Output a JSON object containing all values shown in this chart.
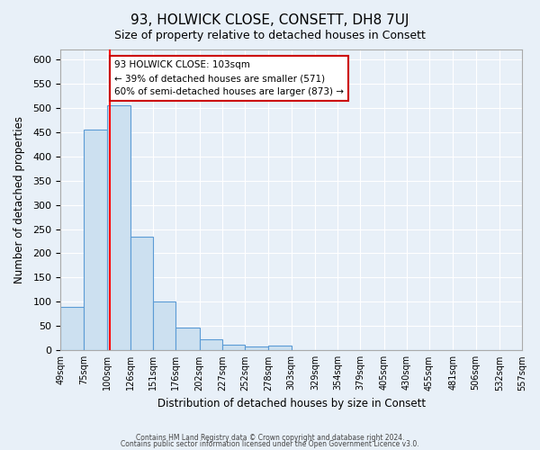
{
  "title": "93, HOLWICK CLOSE, CONSETT, DH8 7UJ",
  "subtitle": "Size of property relative to detached houses in Consett",
  "xlabel": "Distribution of detached houses by size in Consett",
  "ylabel": "Number of detached properties",
  "footer_lines": [
    "Contains HM Land Registry data © Crown copyright and database right 2024.",
    "Contains public sector information licensed under the Open Government Licence v3.0."
  ],
  "bin_edges": [
    49,
    75,
    100,
    126,
    151,
    176,
    202,
    227,
    252,
    278,
    303,
    329,
    354,
    379,
    405,
    430,
    455,
    481,
    506,
    532,
    557
  ],
  "bin_labels": [
    "49sqm",
    "75sqm",
    "100sqm",
    "126sqm",
    "151sqm",
    "176sqm",
    "202sqm",
    "227sqm",
    "252sqm",
    "278sqm",
    "303sqm",
    "329sqm",
    "354sqm",
    "379sqm",
    "405sqm",
    "430sqm",
    "455sqm",
    "481sqm",
    "506sqm",
    "532sqm",
    "557sqm"
  ],
  "bar_heights": [
    90,
    455,
    505,
    235,
    100,
    47,
    22,
    12,
    8,
    10,
    0,
    0,
    1,
    0,
    1,
    0,
    0,
    0,
    1,
    1
  ],
  "bar_color": "#cce0f0",
  "bar_edge_color": "#5b9bd5",
  "red_line_x": 103,
  "ylim": [
    0,
    620
  ],
  "yticks": [
    0,
    50,
    100,
    150,
    200,
    250,
    300,
    350,
    400,
    450,
    500,
    550,
    600
  ],
  "annotation_text": "93 HOLWICK CLOSE: 103sqm\n← 39% of detached houses are smaller (571)\n60% of semi-detached houses are larger (873) →",
  "annotation_box_color": "#ffffff",
  "annotation_box_edge": "#cc0000",
  "bg_color": "#e8f0f8",
  "plot_bg_color": "#e8f0f8"
}
